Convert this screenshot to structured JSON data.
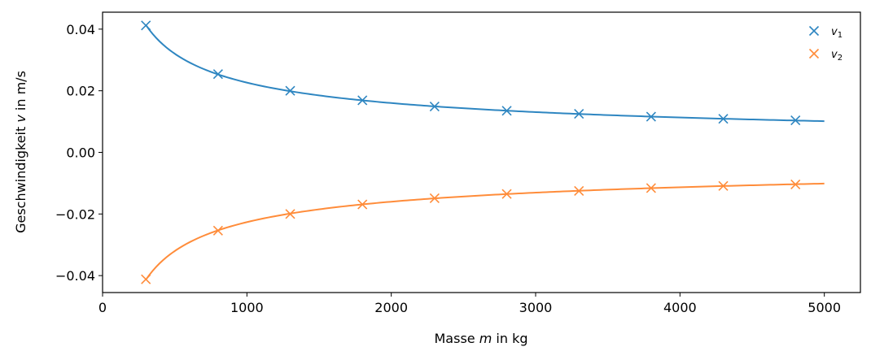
{
  "chart_data": {
    "type": "line",
    "xlabel": {
      "pre": "Masse ",
      "var": "m",
      "post": " in kg"
    },
    "ylabel": {
      "pre": "Geschwindigkeit ",
      "var": "v",
      "post": " in m/s"
    },
    "xlim": [
      0,
      5250
    ],
    "ylim": [
      -0.0455,
      0.0455
    ],
    "xticks": [
      0,
      1000,
      2000,
      3000,
      4000,
      5000
    ],
    "xtick_labels": [
      "0",
      "1000",
      "2000",
      "3000",
      "4000",
      "5000"
    ],
    "yticks": [
      0.04,
      0.02,
      0.0,
      -0.02,
      -0.04
    ],
    "ytick_labels": [
      "0.04",
      "0.02",
      "0.00",
      "−0.02",
      "−0.04"
    ],
    "x": [
      300,
      800,
      1300,
      1800,
      2300,
      2800,
      3300,
      3800,
      4300,
      4800
    ],
    "series": [
      {
        "name": "v",
        "subscript": "1",
        "color": "#2e86c1",
        "values": [
          0.0412,
          0.0254,
          0.02,
          0.0169,
          0.0149,
          0.0135,
          0.0125,
          0.0116,
          0.0109,
          0.0104
        ],
        "curve": {
          "form": "k/sqrt(m)",
          "k": 0.716,
          "from": 300,
          "to": 5000
        }
      },
      {
        "name": "v",
        "subscript": "2",
        "color": "#ff8c3a",
        "values": [
          -0.0412,
          -0.0254,
          -0.02,
          -0.0169,
          -0.0149,
          -0.0135,
          -0.0125,
          -0.0116,
          -0.0109,
          -0.0104
        ],
        "curve": {
          "form": "k/sqrt(m)",
          "k": -0.716,
          "from": 300,
          "to": 5000
        }
      }
    ],
    "grid": false,
    "legend": "top-right"
  }
}
